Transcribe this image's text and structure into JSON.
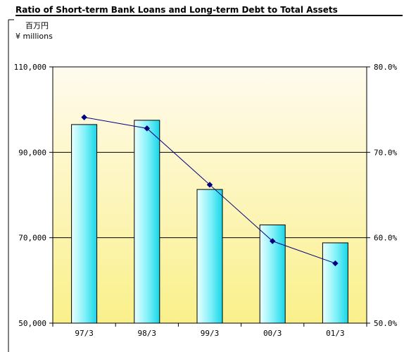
{
  "chart_data": {
    "type": "bar",
    "title": "Ratio of Short-term Bank Loans and Long-term Debt to Total Assets",
    "unit_label_jp": "百万円",
    "unit_label_en": "¥ millions",
    "categories": [
      "97/3",
      "98/3",
      "99/3",
      "00/3",
      "01/3"
    ],
    "bar_series": {
      "axis": "left",
      "values": [
        96500,
        97500,
        81300,
        73000,
        68800
      ]
    },
    "line_series": {
      "axis": "right",
      "values": [
        74.1,
        72.8,
        66.2,
        59.6,
        57.0
      ]
    },
    "y_left": {
      "min": 50000,
      "max": 110000,
      "ticks": [
        50000,
        70000,
        90000,
        110000
      ],
      "tick_labels": [
        "50,000",
        "70,000",
        "90,000",
        "110,000"
      ]
    },
    "y_right": {
      "min": 50,
      "max": 80,
      "ticks": [
        50,
        60,
        70,
        80
      ],
      "tick_labels": [
        "50.0%",
        "60.0%",
        "70.0%",
        "80.0%"
      ]
    },
    "grid": true,
    "legend": "none",
    "colors": {
      "bar_light": "#ebffff",
      "bar_dark": "#18d6e8",
      "line": "#000080",
      "plot_top": "#fffbee",
      "plot_bottom": "#faf08a"
    }
  }
}
